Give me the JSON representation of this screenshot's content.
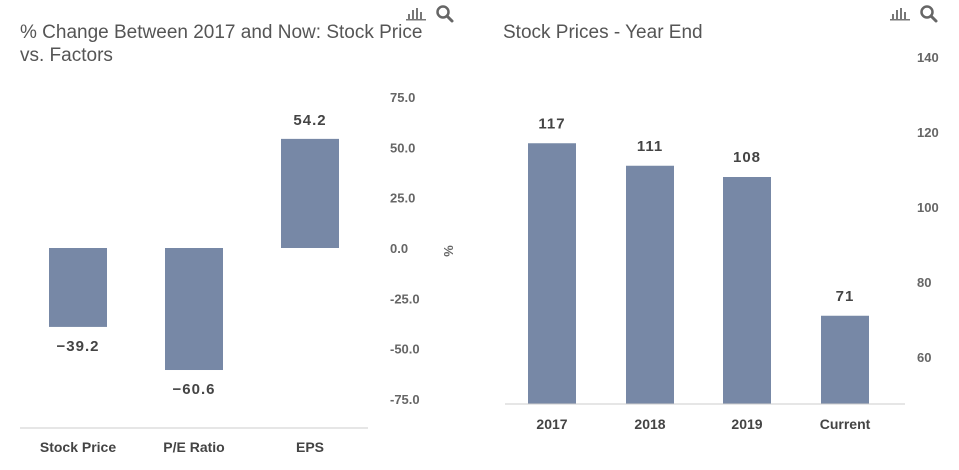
{
  "colors": {
    "bar": "#7788a6",
    "axis": "#cccccc"
  },
  "icons": [
    "bar-chart-icon",
    "search-icon"
  ],
  "chart_data": [
    {
      "type": "bar",
      "title": "% Change Between 2017 and Now: Stock Price vs. Factors",
      "title_lines": [
        "% Change Between 2017 and Now: Stock Price",
        "vs. Factors"
      ],
      "categories": [
        "Stock Price",
        "P/E Ratio",
        "EPS"
      ],
      "values": [
        -39.2,
        -60.6,
        54.2
      ],
      "data_labels": [
        "−39.2",
        "−60.6",
        "54.2"
      ],
      "ylabel": "%",
      "ylim": [
        -75,
        75
      ],
      "yticks": [
        "75.0",
        "50.0",
        "25.0",
        "0.0",
        "-25.0",
        "-50.0",
        "-75.0"
      ],
      "ytick_values": [
        75,
        50,
        25,
        0,
        -25,
        -50,
        -75
      ],
      "y_axis_side": "right",
      "grid": false
    },
    {
      "type": "bar",
      "title": "Stock Prices - Year End",
      "categories": [
        "2017",
        "2018",
        "2019",
        "Current"
      ],
      "values": [
        117,
        111,
        108,
        71
      ],
      "data_labels": [
        "117",
        "111",
        "108",
        "71"
      ],
      "ylim": [
        47.5,
        140
      ],
      "yticks": [
        "140",
        "120",
        "100",
        "80",
        "60"
      ],
      "ytick_values": [
        140,
        120,
        100,
        80,
        60
      ],
      "y_axis_side": "right",
      "grid": false
    }
  ]
}
